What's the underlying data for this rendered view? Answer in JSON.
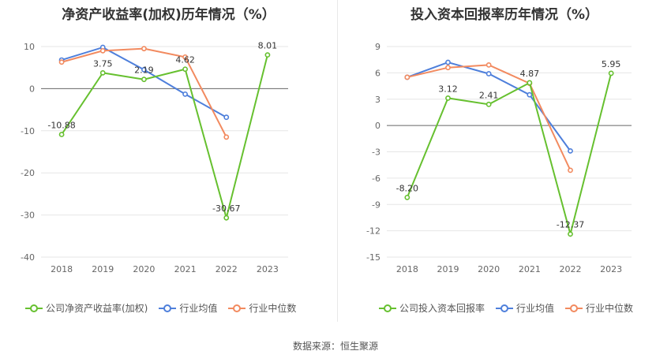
{
  "footer": {
    "source": "数据来源：恒生聚源"
  },
  "chart_data": [
    {
      "type": "line",
      "title": "净资产收益率(加权)历年情况（%）",
      "categories": [
        "2018",
        "2019",
        "2020",
        "2021",
        "2022",
        "2023"
      ],
      "ylim": [
        -40,
        10
      ],
      "yticks": [
        10,
        0,
        -10,
        -20,
        -30,
        -40
      ],
      "grid": true,
      "legend_position": "bottom",
      "series": [
        {
          "name": "公司净资产收益率(加权)",
          "color": "#66c02f",
          "values": [
            -10.88,
            3.75,
            2.19,
            4.62,
            -30.67,
            8.01
          ],
          "labels": [
            "-10.88",
            "3.75",
            "2.19",
            "4.62",
            "-30.67",
            "8.01"
          ]
        },
        {
          "name": "行业均值",
          "color": "#4e7fdb",
          "values": [
            6.8,
            9.8,
            4.5,
            -1.3,
            -6.8,
            null
          ],
          "labels": []
        },
        {
          "name": "行业中位数",
          "color": "#f28a5f",
          "values": [
            6.3,
            9.0,
            9.5,
            7.5,
            -11.5,
            null
          ],
          "labels": []
        }
      ]
    },
    {
      "type": "line",
      "title": "投入资本回报率历年情况（%）",
      "categories": [
        "2018",
        "2019",
        "2020",
        "2021",
        "2022",
        "2023"
      ],
      "ylim": [
        -15,
        9
      ],
      "yticks": [
        9,
        6,
        3,
        0,
        -3,
        -6,
        -9,
        -12,
        -15
      ],
      "grid": true,
      "legend_position": "bottom",
      "series": [
        {
          "name": "公司投入资本回报率",
          "color": "#66c02f",
          "values": [
            -8.2,
            3.12,
            2.41,
            4.87,
            -12.37,
            5.95
          ],
          "labels": [
            "-8.20",
            "3.12",
            "2.41",
            "4.87",
            "-12.37",
            "5.95"
          ]
        },
        {
          "name": "行业均值",
          "color": "#4e7fdb",
          "values": [
            5.5,
            7.2,
            5.9,
            3.5,
            -2.9,
            null
          ],
          "labels": []
        },
        {
          "name": "行业中位数",
          "color": "#f28a5f",
          "values": [
            5.5,
            6.6,
            6.9,
            4.8,
            -5.1,
            null
          ],
          "labels": []
        }
      ]
    }
  ]
}
